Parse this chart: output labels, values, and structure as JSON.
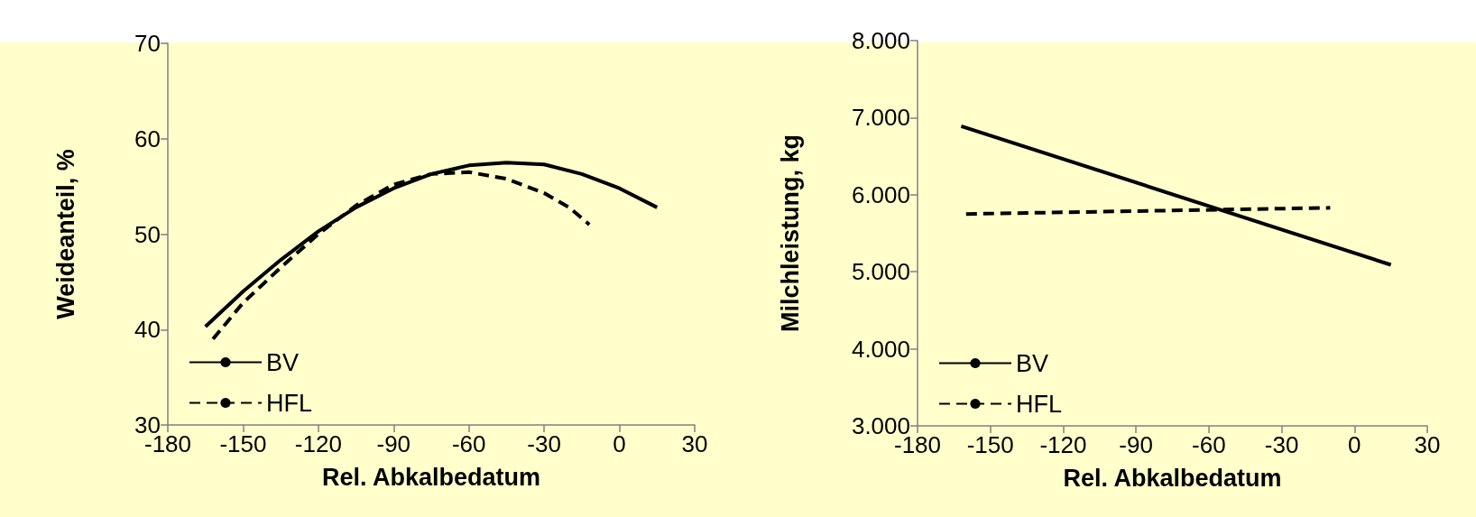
{
  "chart_data": [
    {
      "type": "line",
      "xlabel": "Rel. Abkalbedatum",
      "ylabel": "Weideanteil, %",
      "xlim": [
        -180,
        30
      ],
      "xticks": [
        -180,
        -150,
        -120,
        -90,
        -60,
        -30,
        0,
        30
      ],
      "ylim": [
        30,
        70
      ],
      "yticks": [
        30,
        40,
        50,
        60,
        70
      ],
      "grid": false,
      "legend": "bottom left",
      "marker": "none",
      "series": [
        {
          "name": "BV",
          "color": "#000000",
          "line_style": "solid",
          "x": [
            -165,
            -150,
            -135,
            -120,
            -105,
            -90,
            -75,
            -60,
            -45,
            -30,
            -15,
            0,
            15
          ],
          "values": [
            40.3,
            44,
            47.3,
            50.3,
            52.8,
            54.8,
            56.3,
            57.2,
            57.5,
            57.3,
            56.3,
            54.8,
            52.8
          ]
        },
        {
          "name": "HFL",
          "color": "#000000",
          "line_style": "dashed",
          "x": [
            -162,
            -150,
            -135,
            -120,
            -105,
            -90,
            -75,
            -60,
            -45,
            -30,
            -20,
            -12
          ],
          "values": [
            39,
            42.8,
            46.5,
            50,
            53,
            55.2,
            56.3,
            56.5,
            55.8,
            54.3,
            52.8,
            51
          ]
        }
      ]
    },
    {
      "type": "line",
      "xlabel": "Rel. Abkalbedatum",
      "ylabel": "Milchleistung, kg",
      "xlim": [
        -180,
        30
      ],
      "xticks": [
        -180,
        -150,
        -120,
        -90,
        -60,
        -30,
        0,
        30
      ],
      "ylim": [
        3000,
        8000
      ],
      "yticks": [
        {
          "value": 3000,
          "label": "3.000"
        },
        {
          "value": 4000,
          "label": "4.000"
        },
        {
          "value": 5000,
          "label": "5.000"
        },
        {
          "value": 6000,
          "label": "6.000"
        },
        {
          "value": 7000,
          "label": "7.000"
        },
        {
          "value": 8000,
          "label": "8.000"
        }
      ],
      "grid": false,
      "legend": "bottom left",
      "marker": "none",
      "series": [
        {
          "name": "BV",
          "color": "#000000",
          "line_style": "solid",
          "x": [
            -162,
            15
          ],
          "values": [
            6890,
            5090
          ]
        },
        {
          "name": "HFL",
          "color": "#000000",
          "line_style": "dashed",
          "x": [
            -160,
            -10
          ],
          "values": [
            5750,
            5830
          ]
        }
      ]
    }
  ]
}
